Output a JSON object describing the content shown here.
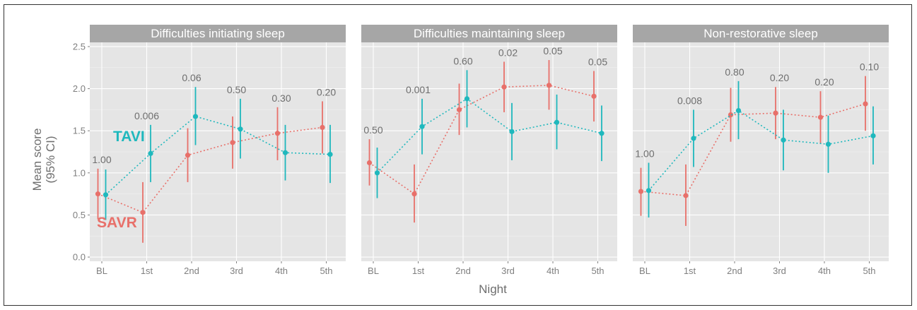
{
  "chart_data": {
    "type": "scatter",
    "xlabel": "Night",
    "ylabel_lines": [
      "Mean score",
      "(95% CI)"
    ],
    "categories": [
      "BL",
      "1st",
      "2nd",
      "3rd",
      "4th",
      "5th"
    ],
    "ylim": [
      -0.05,
      2.55
    ],
    "yticks": [
      0.0,
      0.5,
      1.0,
      1.5,
      2.0,
      2.5
    ],
    "ytick_labels": [
      "0.0",
      "0.5",
      "1.0",
      "1.5",
      "2.0",
      "2.5"
    ],
    "grid": true,
    "colors": {
      "SAVR": "#e8706a",
      "TAVI": "#1fb8bd",
      "panel_bg": "#e5e5e5",
      "strip_bg": "#a6a6a6"
    },
    "series_labels": {
      "TAVI": "TAVI",
      "SAVR": "SAVR"
    },
    "panels": [
      {
        "title": "Difficulties initiating sleep",
        "p_values": [
          "1.00",
          "0.006",
          "0.06",
          "0.50",
          "0.30",
          "0.20"
        ],
        "series": [
          {
            "name": "SAVR",
            "mean": [
              0.75,
              0.53,
              1.21,
              1.36,
              1.47,
              1.54
            ],
            "lower": [
              0.45,
              0.17,
              0.89,
              1.05,
              1.15,
              1.23
            ],
            "upper": [
              1.05,
              0.89,
              1.53,
              1.67,
              1.78,
              1.85
            ]
          },
          {
            "name": "TAVI",
            "mean": [
              0.74,
              1.23,
              1.67,
              1.52,
              1.24,
              1.22
            ],
            "lower": [
              0.44,
              0.89,
              1.33,
              1.17,
              0.91,
              0.88
            ],
            "upper": [
              1.04,
              1.57,
              2.02,
              1.88,
              1.57,
              1.57
            ]
          }
        ]
      },
      {
        "title": "Difficulties maintaining sleep",
        "p_values": [
          "0.50",
          "0.001",
          "0.60",
          "0.02",
          "0.05",
          "0.05"
        ],
        "series": [
          {
            "name": "SAVR",
            "mean": [
              1.12,
              0.75,
              1.75,
              2.02,
              2.04,
              1.91
            ],
            "lower": [
              0.85,
              0.41,
              1.45,
              1.72,
              1.75,
              1.61
            ],
            "upper": [
              1.4,
              1.1,
              2.06,
              2.32,
              2.34,
              2.21
            ]
          },
          {
            "name": "TAVI",
            "mean": [
              1.0,
              1.55,
              1.88,
              1.49,
              1.6,
              1.47
            ],
            "lower": [
              0.7,
              1.22,
              1.54,
              1.15,
              1.28,
              1.14
            ],
            "upper": [
              1.3,
              1.88,
              2.22,
              1.83,
              1.93,
              1.8
            ]
          }
        ]
      },
      {
        "title": "Non-restorative sleep",
        "p_values": [
          "1.00",
          "0.008",
          "0.80",
          "0.20",
          "0.20",
          "0.10"
        ],
        "series": [
          {
            "name": "SAVR",
            "mean": [
              0.78,
              0.73,
              1.69,
              1.71,
              1.66,
              1.82
            ],
            "lower": [
              0.49,
              0.37,
              1.37,
              1.4,
              1.35,
              1.5
            ],
            "upper": [
              1.06,
              1.1,
              2.01,
              2.02,
              1.97,
              2.15
            ]
          },
          {
            "name": "TAVI",
            "mean": [
              0.79,
              1.41,
              1.74,
              1.39,
              1.34,
              1.44
            ],
            "lower": [
              0.47,
              1.07,
              1.4,
              1.03,
              1.0,
              1.1
            ],
            "upper": [
              1.12,
              1.75,
              2.09,
              1.75,
              1.68,
              1.79
            ]
          }
        ]
      }
    ]
  }
}
